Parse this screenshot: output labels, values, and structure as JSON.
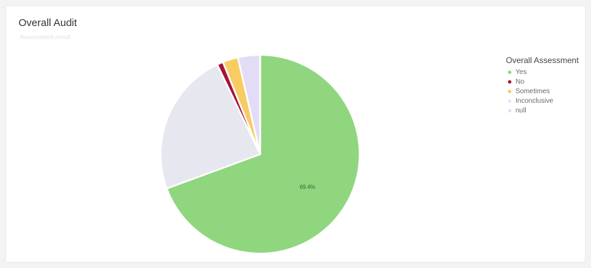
{
  "card": {
    "title": "Overall Audit",
    "subtitle": "Assessment result"
  },
  "chart_data": {
    "type": "pie",
    "title": "Overall Audit",
    "legend_title": "Overall Assessment",
    "legend_position": "right",
    "start_angle_deg": 0,
    "direction": "clockwise",
    "slices": [
      {
        "label": "Yes",
        "value": 69.4,
        "display": "69.4%",
        "color": "#8fd67f"
      },
      {
        "label": "Inconclusive",
        "value": 23.5,
        "display": "",
        "color": "#e6e7ef"
      },
      {
        "label": "No",
        "value": 1.0,
        "display": "",
        "color": "#a3143a"
      },
      {
        "label": "Sometimes",
        "value": 2.5,
        "display": "",
        "color": "#f8cc62"
      },
      {
        "label": "null",
        "value": 3.6,
        "display": "",
        "color": "#e3dcf6"
      }
    ],
    "legend": [
      {
        "label": "Yes",
        "color": "#8fd67f"
      },
      {
        "label": "No",
        "color": "#a3143a"
      },
      {
        "label": "Sometimes",
        "color": "#f8cc62"
      },
      {
        "label": "Inconclusive",
        "color": "#e6e7ef"
      },
      {
        "label": "null",
        "color": "#e3dcf6"
      }
    ]
  }
}
